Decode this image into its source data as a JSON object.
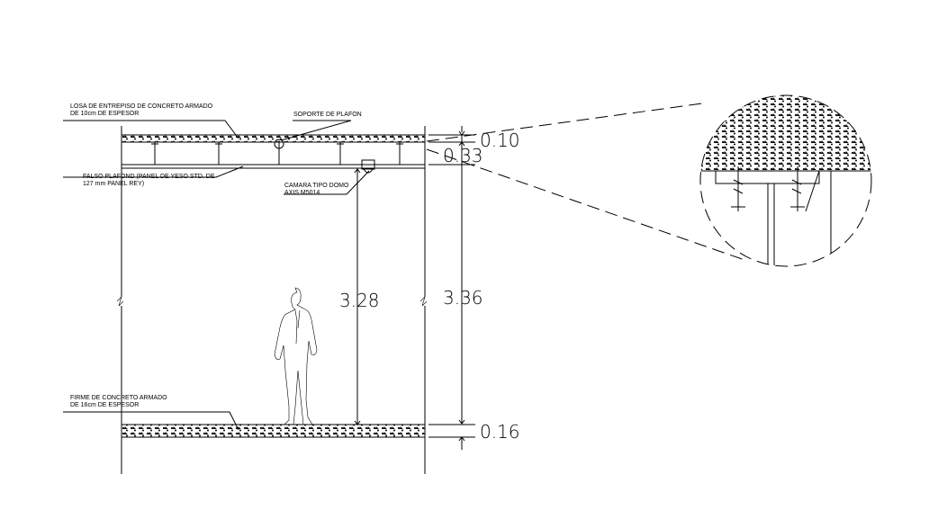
{
  "labels": {
    "slab": [
      "LOSA DE ENTREPISO DE CONCRETO ARMADO",
      "DE 10cm DE ESPESOR"
    ],
    "support": "SOPORTE DE PLAFON",
    "ceiling": [
      "FALSO PLAFOND (PANEL DE YESO STD. DE",
      "127 mm PANEL REY)"
    ],
    "camera": [
      "CAMARA TIPO DOMO",
      "AXIS M5014"
    ],
    "floor": [
      "FIRME DE CONCRETO ARMADO",
      "DE 16cm DE ESPESOR"
    ]
  },
  "dimensions": {
    "slab": "0.10",
    "plenum": "0.33",
    "clear": "3.28",
    "total": "3.36",
    "floor": "0.16"
  }
}
